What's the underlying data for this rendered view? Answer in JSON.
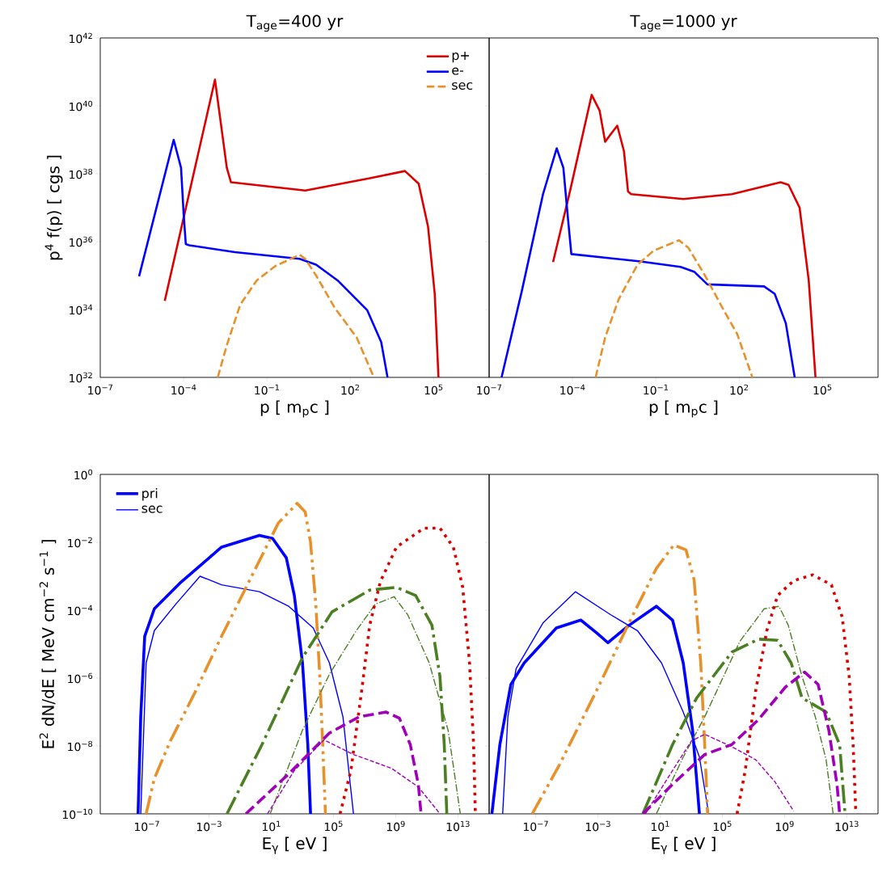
{
  "chart_data": [
    {
      "type": "line",
      "title": "T$_{age}$=400 yr",
      "xlabel": "p [ m$_{p}$c ]",
      "ylabel": "p$^{4}$ f(p) [ cgs ]",
      "log": "xy",
      "xlim": [
        1e-07,
        10000000.0
      ],
      "ylim": [
        1e+32,
        1e+42
      ],
      "xticks": [
        {
          "value": 1e-07,
          "label": "10$^{−7}$"
        },
        {
          "value": 0.0001,
          "label": "10$^{−4}$"
        },
        {
          "value": 0.1,
          "label": "10$^{−1}$"
        },
        {
          "value": 100.0,
          "label": "10$^{2}$"
        },
        {
          "value": 100000.0,
          "label": "10$^{5}$"
        }
      ],
      "yticks": [
        {
          "value": 1e+32,
          "label": "10$^{32}$"
        },
        {
          "value": 1e+34,
          "label": "10$^{34}$"
        },
        {
          "value": 1e+36,
          "label": "10$^{36}$"
        },
        {
          "value": 1e+38,
          "label": "10$^{38}$"
        },
        {
          "value": 1e+40,
          "label": "10$^{40}$"
        },
        {
          "value": 1e+42,
          "label": "10$^{42}$"
        }
      ],
      "legend": "top right",
      "grid": false,
      "series": [
        {
          "name": "p+",
          "color": "#dd0000",
          "line_style": "solid",
          "x": [
            2.1e-05,
            0.00135,
            0.0036,
            0.0051,
            2.4,
            510.0,
            9300.0,
            29000.0,
            63000.0,
            110000.0,
            150000.0
          ],
          "values": [
            1.8e+34,
            5.9e+40,
            1.5e+38,
            5.6e+37,
            3.2e+37,
            7.4e+37,
            1.2e+38,
            5.1e+37,
            2.8e+36,
            2.9e+34,
            1e+32
          ]
        },
        {
          "name": "e-",
          "color": "#0000ff",
          "line_style": "solid",
          "x": [
            2.5e-06,
            4.4e-05,
            8.1e-05,
            0.0001,
            0.00012,
            0.00016,
            0.0071,
            1.5,
            5.9,
            35,
            410.0,
            1300.0,
            2200.0
          ],
          "values": [
            9.5e+34,
            1e+39,
            1.5e+38,
            6.9e+36,
            8.5e+35,
            7.8e+35,
            4.9e+35,
            3.1e+35,
            2.1e+35,
            7.2e+34,
            9.5e+33,
            1.1e+33,
            1e+32
          ]
        },
        {
          "name": "sec",
          "color": "#e8912a",
          "line_style": "dashed",
          "x": [
            0.0017,
            0.0036,
            0.011,
            0.043,
            0.2,
            1.5,
            2.4,
            5.9,
            28,
            170.0,
            710.0
          ],
          "values": [
            1e+32,
            8.9e+32,
            1.4e+34,
            7.2e+34,
            1.9e+35,
            4.1e+35,
            3.1e+35,
            1e+35,
            1.1e+34,
            1.5e+33,
            1e+32
          ]
        }
      ]
    },
    {
      "type": "line",
      "title": "T$_{age}$=1000 yr",
      "xlabel": "p [ m$_{p}$c ]",
      "log": "xy",
      "xlim": [
        1e-07,
        10000000.0
      ],
      "ylim": [
        1e+32,
        1e+42
      ],
      "tick_labels": "x",
      "xticks": [
        {
          "value": 1e-07,
          "label": "10$^{−7}$"
        },
        {
          "value": 0.0001,
          "label": "10$^{−4}$"
        },
        {
          "value": 0.1,
          "label": "10$^{−1}$"
        },
        {
          "value": 100.0,
          "label": "10$^{2}$"
        },
        {
          "value": 100000.0,
          "label": "10$^{5}$"
        }
      ],
      "yticks": [
        {
          "value": 1e+32,
          "label": null
        },
        {
          "value": 1e+34,
          "label": null
        },
        {
          "value": 1e+36,
          "label": null
        },
        {
          "value": 1e+38,
          "label": null
        },
        {
          "value": 1e+40,
          "label": null
        },
        {
          "value": 1e+42,
          "label": null
        }
      ],
      "series": [
        {
          "color": "#dd0000",
          "line_style": "solid",
          "x": [
            2e-05,
            8.1e-05,
            0.00049,
            0.00095,
            0.0015,
            0.0023,
            0.0041,
            0.0071,
            0.01,
            0.013,
            0.98,
            55,
            3100.0,
            6000.0,
            15000.0,
            32000.0,
            56000.0
          ],
          "values": [
            2.5e+35,
            3e+37,
            2.1e+40,
            7.2e+39,
            8.7e+38,
            1.4e+39,
            2.6e+39,
            4.7e+38,
            3e+37,
            2.5e+37,
            1.8e+37,
            2.5e+37,
            5.6e+37,
            4.7e+37,
            1e+37,
            7.2e+34,
            1e+32
          ]
        },
        {
          "color": "#0000ff",
          "line_style": "solid",
          "x": [
            2.8e-07,
            1.5e-06,
            8.7e-06,
            2.7e-05,
            4.7e-05,
            6.6e-05,
            9.1e-05,
            0.028,
            0.78,
            2.4,
            7.2,
            790.0,
            1900.0,
            4800.0,
            10000.0
          ],
          "values": [
            1e+32,
            3.5e+34,
            2.5e+37,
            5.6e+38,
            1.5e+38,
            6.9e+36,
            4.3e+35,
            2.6e+35,
            1.8e+35,
            1.3e+35,
            5.5e+34,
            4.8e+34,
            2.9e+34,
            3.9e+33,
            1e+32
          ]
        },
        {
          "color": "#e8912a",
          "line_style": "dashed",
          "x": [
            0.00068,
            0.0015,
            0.0046,
            0.022,
            0.083,
            0.69,
            1.5,
            5.9,
            28,
            85,
            300.0
          ],
          "values": [
            1e+32,
            1.5e+33,
            2e+34,
            2.1e+35,
            5.4e+35,
            1.1e+36,
            6.5e+35,
            1e+35,
            9.5e+33,
            1.9e+33,
            1e+32
          ]
        }
      ]
    },
    {
      "type": "line",
      "xlabel": "E$_{γ}$ [ eV ]",
      "ylabel": "E$^{2}$ dN/dE [ MeV cm$^{−2}$ s$^{−1}$ ]",
      "log": "xy",
      "xlim": [
        1e-10,
        1000000000000000.0
      ],
      "ylim": [
        1e-10,
        1
      ],
      "xticks": [
        {
          "value": 1e-07,
          "label": "10$^{−7}$"
        },
        {
          "value": 0.001,
          "label": "10$^{−3}$"
        },
        {
          "value": 10,
          "label": "10$^{1}$"
        },
        {
          "value": 100000.0,
          "label": "10$^{5}$"
        },
        {
          "value": 1000000000.0,
          "label": "10$^{9}$"
        },
        {
          "value": 10000000000000.0,
          "label": "10$^{13}$"
        }
      ],
      "yticks": [
        {
          "value": 1e-10,
          "label": "10$^{−10}$"
        },
        {
          "value": 1e-08,
          "label": "10$^{−8}$"
        },
        {
          "value": 1e-06,
          "label": "10$^{−6}$"
        },
        {
          "value": 0.0001,
          "label": "10$^{−4}$"
        },
        {
          "value": 0.01,
          "label": "10$^{−2}$"
        },
        {
          "value": 1,
          "label": "10$^{0}$"
        }
      ],
      "legend": "top left",
      "series": [
        {
          "name": "pri",
          "color": "#0000ff",
          "line_style": "solid",
          "x": [
            2.7e-08,
            4e-08,
            7.2e-08,
            3e-07,
            1.6e-05,
            0.0063,
            1.7,
            12,
            91,
            300.0,
            1000.0,
            2200.0,
            3300.0
          ],
          "values": [
            1e-10,
            7.2e-08,
            1.7e-05,
            0.00011,
            0.00068,
            0.0072,
            0.016,
            0.013,
            0.0035,
            0.00027,
            2.8e-06,
            1.1e-08,
            1e-10
          ]
        },
        {
          "name": "sec",
          "color": "#0000ff",
          "line_style": "solid",
          "x": [
            4e-08,
            8.9e-08,
            3e-07,
            7.1e-06,
            0.00026,
            0.0063,
            1.7,
            130.0,
            4900.0,
            54000.0,
            400000.0,
            1900000.0
          ],
          "values": [
            1e-10,
            2.8e-06,
            2.5e-05,
            0.00015,
            0.001,
            0.00056,
            0.00035,
            0.00013,
            3e-05,
            2.8e-06,
            7.2e-08,
            1e-10
          ]
        },
        {
          "color": "#e8912a",
          "line_style": "dashdotdot",
          "x": [
            8.9e-08,
            3e-07,
            3.2e-06,
            0.00012,
            0.0063,
            0.51,
            28,
            450.0,
            1500.0,
            3300.0,
            7200.0,
            13000.0,
            20000.0,
            30000.0
          ],
          "values": [
            1e-10,
            1.1e-09,
            1.4e-08,
            3.7e-07,
            1.7e-05,
            0.00095,
            0.037,
            0.14,
            0.078,
            0.01,
            0.00015,
            1.1e-06,
            1.1e-08,
            1e-10
          ]
        },
        {
          "color": "#4a7f22",
          "line_style": "dashdot",
          "x": [
            0.014,
            2.5,
            1000.0,
            79000.0,
            21000000.0,
            1100000000.0,
            19000000000.0,
            210000000000.0,
            690000000000.0,
            1300000000000.0,
            1900000000000.0
          ],
          "values": [
            1e-10,
            1.1e-08,
            4e-06,
            8.9e-05,
            0.00039,
            0.00047,
            0.00027,
            3.6e-05,
            1.1e-06,
            1.1e-08,
            1e-10
          ]
        },
        {
          "color": "#4a7f22",
          "line_style": "dashdot",
          "x": [
            8.3,
            1000.0,
            54000.0,
            2900000.0,
            48000000.0,
            780000000.0,
            5800000000.0,
            140000000000.0,
            2300000000000.0,
            14000000000000.0
          ],
          "values": [
            1e-10,
            2.9e-08,
            1.3e-06,
            2.5e-05,
            0.00015,
            0.00025,
            7.4e-05,
            2.8e-06,
            2.9e-08,
            1e-10
          ]
        },
        {
          "color": "#dd0000",
          "line_style": "dotted",
          "x": [
            260000.0,
            1300000.0,
            6500000.0,
            21000000.0,
            100000000.0,
            1100000000.0,
            63000000000.0,
            690000000000.0,
            5000000000000.0,
            20000000000000.0,
            55000000000000.0,
            100000000000000.0,
            130000000000000.0
          ],
          "values": [
            1e-10,
            1.9e-09,
            4.5e-07,
            3.6e-05,
            0.00068,
            0.0072,
            0.026,
            0.026,
            0.0072,
            0.00047,
            2.8e-06,
            1.1e-08,
            1e-10
          ]
        },
        {
          "color": "#a000b8",
          "line_style": "dashed",
          "x": [
            0.23,
            130.0,
            54000.0,
            4400000.0,
            230000000.0,
            1700000000.0,
            8500000000.0,
            28000000000.0,
            42000000000.0
          ],
          "values": [
            1e-10,
            1.5e-09,
            2.4e-08,
            7.2e-08,
            1e-07,
            6.6e-08,
            1.1e-08,
            7.4e-10,
            1e-10
          ]
        },
        {
          "color": "#a000b8",
          "line_style": "dashed",
          "x": [
            5.6,
            300.0,
            24000.0,
            1900000.0,
            520000000.0,
            28000000000.0,
            690000000000.0
          ],
          "values": [
            1e-10,
            1.9e-09,
            1.5e-08,
            5.6e-09,
            2.2e-09,
            6.2e-10,
            1e-10
          ]
        }
      ]
    },
    {
      "type": "line",
      "xlabel": "E$_{γ}$ [ eV ]",
      "log": "xy",
      "xlim": [
        1e-10,
        1000000000000000.0
      ],
      "ylim": [
        1e-10,
        1
      ],
      "tick_labels": "x",
      "xticks": [
        {
          "value": 1e-07,
          "label": "10$^{−7}$"
        },
        {
          "value": 0.001,
          "label": "10$^{−3}$"
        },
        {
          "value": 10,
          "label": "10$^{1}$"
        },
        {
          "value": 100000.0,
          "label": "10$^{5}$"
        },
        {
          "value": 1000000000.0,
          "label": "10$^{9}$"
        },
        {
          "value": 10000000000000.0,
          "label": "10$^{13}$"
        }
      ],
      "yticks": [
        {
          "value": 1e-10,
          "label": null
        },
        {
          "value": 1e-08,
          "label": null
        },
        {
          "value": 1e-06,
          "label": null
        },
        {
          "value": 0.0001,
          "label": null
        },
        {
          "value": 0.01,
          "label": null
        },
        {
          "value": 1,
          "label": null
        }
      ],
      "series": [
        {
          "color": "#0000ff",
          "line_style": "solid",
          "x": [
            1.5e-10,
            4.9e-10,
            2.5e-09,
            1.8e-08,
            2.1e-06,
            7.8e-05,
            0.00085,
            0.0043,
            0.1,
            5.6,
            62,
            300.0,
            1200.0,
            3300.0
          ],
          "values": [
            1e-10,
            1.1e-08,
            6.5e-07,
            2.8e-06,
            3e-05,
            5.1e-05,
            2.1e-05,
            1.1e-05,
            3.6e-05,
            0.00013,
            5.1e-05,
            2.8e-06,
            2.9e-08,
            1e-10
          ]
        },
        {
          "color": "#0000ff",
          "line_style": "solid",
          "x": [
            7.4e-10,
            1.6e-09,
            5.4e-09,
            3e-07,
            3.5e-05,
            0.0063,
            0.34,
            12,
            300.0,
            3300.0,
            13000.0
          ],
          "values": [
            1e-10,
            7.2e-08,
            1.9e-06,
            4.3e-05,
            0.00035,
            7.4e-05,
            2.5e-05,
            2.8e-06,
            1e-07,
            4.7e-09,
            1e-10
          ]
        },
        {
          "color": "#e8912a",
          "line_style": "dashdotdot",
          "x": [
            5.9e-08,
            3.2e-06,
            0.00085,
            0.1,
            5.6,
            74,
            450.0,
            1500.0,
            4000.0,
            7200.0,
            11000.0
          ],
          "values": [
            1e-10,
            2.7e-09,
            4.5e-07,
            4.3e-05,
            0.0017,
            0.0083,
            0.006,
            0.00079,
            2.8e-06,
            1.1e-08,
            1e-10
          ]
        },
        {
          "color": "#4a7f22",
          "line_style": "dashdot",
          "x": [
            0.76,
            62,
            2200.0,
            400000.0,
            21000000.0,
            350000000.0,
            2600000000.0,
            13000000000.0,
            460000000000.0,
            3400000000000.0,
            7600000000000.0
          ],
          "values": [
            1e-10,
            1.1e-08,
            2.6e-07,
            5.8e-06,
            1.4e-05,
            1.3e-05,
            2.8e-06,
            2.6e-07,
            1e-07,
            1.1e-08,
            1e-10
          ]
        },
        {
          "color": "#4a7f22",
          "line_style": "dashdot",
          "x": [
            5.6,
            300.0,
            7200.0,
            1300000.0,
            48000000.0,
            430000000.0,
            1700000000.0,
            13000000000.0,
            93000000000.0,
            460000000000.0,
            1300000000000.0
          ],
          "values": [
            1e-10,
            4.7e-09,
            7.2e-08,
            1.2e-05,
            0.00011,
            0.00013,
            3.6e-05,
            1.1e-06,
            7.2e-08,
            3.9e-09,
            1e-10
          ]
        },
        {
          "color": "#dd0000",
          "line_style": "dotted",
          "x": [
            870000.0,
            2900000.0,
            14000000.0,
            71000000.0,
            350000000.0,
            3800000000.0,
            63000000000.0,
            1000000000000.0,
            5000000000000.0,
            14000000000000.0,
            25000000000000.0,
            37000000000000.0
          ],
          "values": [
            1e-10,
            1.9e-09,
            4.5e-07,
            2.5e-05,
            0.00027,
            0.00074,
            0.0011,
            0.00056,
            6.2e-05,
            1.1e-06,
            1.1e-08,
            1.2e-10
          ]
        },
        {
          "color": "#a000b8",
          "line_style": "dashed",
          "x": [
            0.76,
            62,
            7200.0,
            400000.0,
            21000000.0,
            1100000000.0,
            19000000000.0,
            140000000000.0,
            690000000000.0,
            2300000000000.0,
            3400000000000.0
          ],
          "values": [
            1e-10,
            7.4e-10,
            5.6e-09,
            1.1e-08,
            6e-08,
            5.4e-07,
            1.5e-06,
            6.5e-07,
            2.9e-08,
            7.4e-10,
            1e-10
          ]
        },
        {
          "color": "#a000b8",
          "line_style": "dashed",
          "x": [
            1.1,
            62,
            1000.0,
            7200.0,
            400000.0,
            14000000.0,
            230000000.0,
            3800000000.0
          ],
          "values": [
            1e-10,
            1.9e-09,
            1.4e-08,
            2.2e-08,
            9.5e-09,
            3.9e-09,
            8.9e-10,
            1.2e-10
          ]
        }
      ]
    }
  ]
}
